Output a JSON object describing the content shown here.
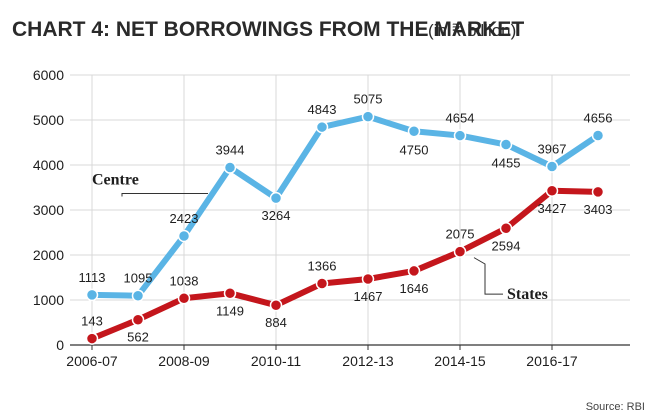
{
  "chart_data": {
    "type": "line",
    "title": "CHART 4: NET BORROWINGS FROM THE MARKET",
    "subtitle": "(in ₹ billion)",
    "source": "Source: RBI",
    "ylim": [
      0,
      6000
    ],
    "yticks": [
      0,
      1000,
      2000,
      3000,
      4000,
      5000,
      6000
    ],
    "xticks": [
      {
        "index": 0,
        "label": "2006-07"
      },
      {
        "index": 2,
        "label": "2008-09"
      },
      {
        "index": 4,
        "label": "2010-11"
      },
      {
        "index": 6,
        "label": "2012-13"
      },
      {
        "index": 8,
        "label": "2014-15"
      },
      {
        "index": 10,
        "label": "2016-17"
      }
    ],
    "grid": true,
    "series": [
      {
        "name": "Centre",
        "color": "#5ab4e5",
        "values": [
          1113,
          1095,
          2423,
          3944,
          3264,
          4843,
          5075,
          4750,
          4654,
          4455,
          3967,
          4656
        ]
      },
      {
        "name": "States",
        "color": "#c4161c",
        "values": [
          143,
          562,
          1038,
          1149,
          884,
          1366,
          1467,
          1646,
          2075,
          2594,
          3427,
          3403
        ]
      }
    ]
  }
}
